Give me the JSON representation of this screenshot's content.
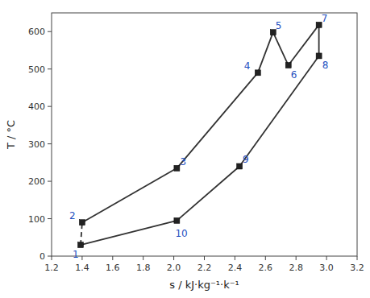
{
  "chart_data": {
    "type": "line",
    "xlabel": "s / kJ·kg⁻¹·k⁻¹",
    "ylabel": "T / °C",
    "series": [
      {
        "x": [
          1.4,
          2.02,
          2.55,
          2.65,
          2.75,
          2.95,
          2.95,
          2.43,
          2.02,
          1.39
        ],
        "values": [
          90,
          235,
          490,
          598,
          510,
          618,
          535,
          240,
          95,
          30
        ],
        "labels": [
          "2",
          "3",
          "4",
          "5",
          "6",
          "7",
          "8",
          "9",
          "10",
          "1"
        ],
        "line_style": "solid",
        "marker": "square"
      },
      {
        "x": [
          1.39,
          1.4
        ],
        "values": [
          30,
          90
        ],
        "line_style": "dashed"
      }
    ],
    "xlim": [
      1.2,
      3.2
    ],
    "ylim": [
      0,
      650
    ],
    "xticks": [
      1.2,
      1.4,
      1.6,
      1.8,
      {
        "value": 2.0,
        "label": "2.0"
      },
      2.2,
      2.4,
      2.6,
      2.8,
      {
        "value": 3.0,
        "label": "3.0"
      },
      3.2
    ],
    "yticks": [
      0,
      100,
      200,
      300,
      400,
      500,
      600
    ],
    "grid": false
  }
}
